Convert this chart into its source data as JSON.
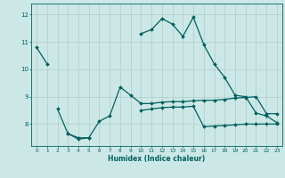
{
  "xlabel": "Humidex (Indice chaleur)",
  "bg_color": "#cce8e6",
  "grid_color": "#b0ccca",
  "line_color": "#006060",
  "x_values": [
    0,
    1,
    2,
    3,
    4,
    5,
    6,
    7,
    8,
    9,
    10,
    11,
    12,
    13,
    14,
    15,
    16,
    17,
    18,
    19,
    20,
    21,
    22,
    23
  ],
  "line1": [
    10.8,
    10.2,
    null,
    null,
    null,
    null,
    null,
    null,
    null,
    null,
    11.3,
    11.45,
    11.85,
    11.65,
    11.2,
    11.9,
    10.9,
    10.2,
    9.7,
    9.05,
    9.0,
    8.4,
    8.3,
    8.05
  ],
  "line2": [
    null,
    null,
    8.55,
    7.65,
    7.5,
    7.5,
    8.1,
    8.3,
    9.35,
    9.05,
    8.75,
    8.75,
    8.8,
    8.82,
    8.82,
    8.85,
    8.87,
    8.87,
    8.9,
    8.95,
    8.97,
    9.0,
    8.38,
    8.38
  ],
  "line3": [
    null,
    null,
    null,
    7.65,
    7.45,
    7.5,
    null,
    null,
    null,
    null,
    8.5,
    8.55,
    8.6,
    8.62,
    8.62,
    8.65,
    7.9,
    7.93,
    7.95,
    7.97,
    8.0,
    8.0,
    8.0,
    8.0
  ],
  "ylim": [
    7.2,
    12.4
  ],
  "xlim": [
    -0.5,
    23.5
  ],
  "yticks": [
    8,
    9,
    10,
    11,
    12
  ]
}
